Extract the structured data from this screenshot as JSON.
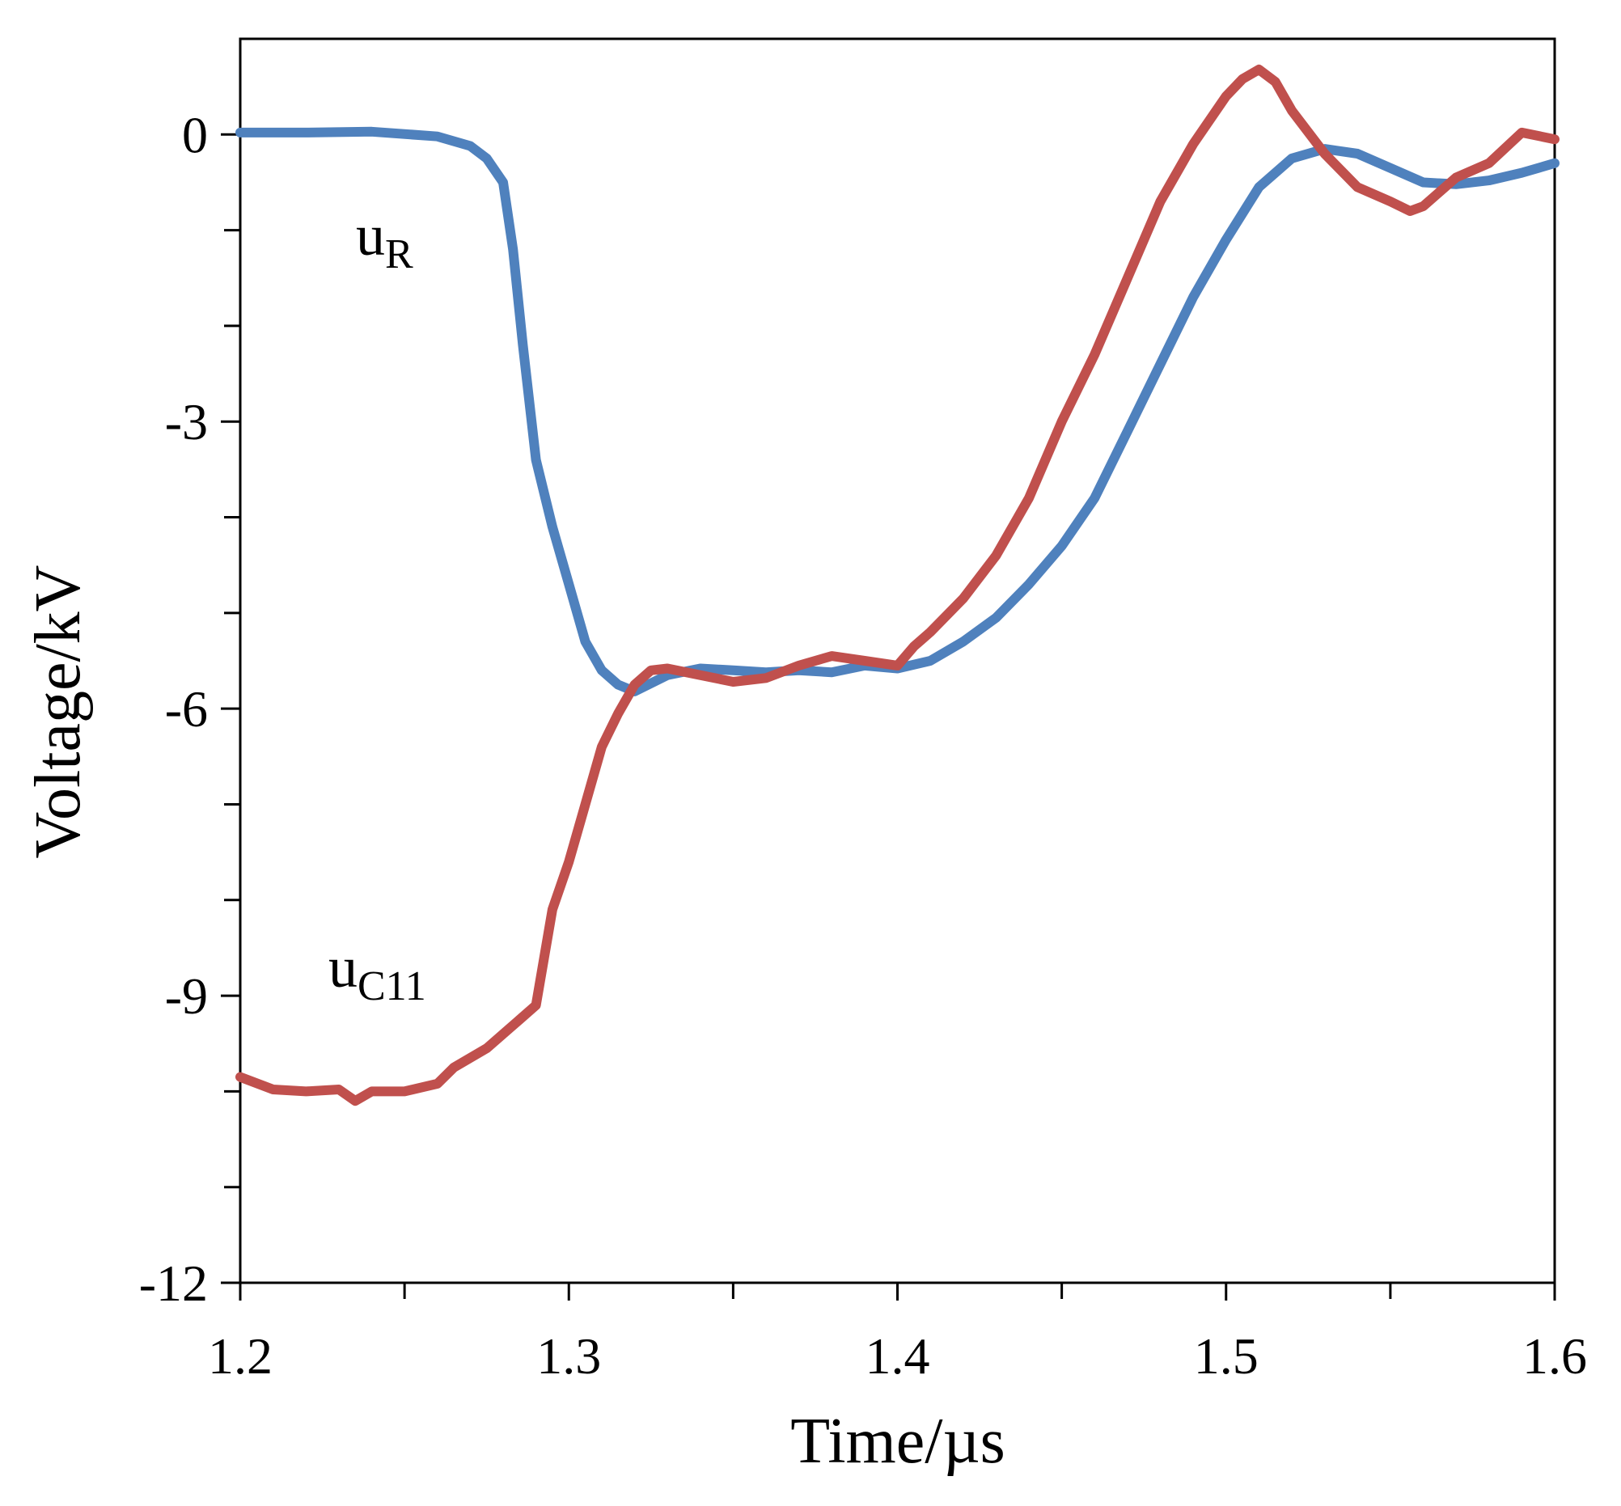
{
  "chart_data": {
    "type": "line",
    "title": "",
    "xlabel": "Time/µs",
    "ylabel": "Voltage/kV",
    "xlim": [
      1.2,
      1.6
    ],
    "ylim": [
      -12,
      1.0
    ],
    "x_ticks": [
      1.2,
      1.3,
      1.4,
      1.5,
      1.6
    ],
    "x_tick_labels": [
      "1.2",
      "1.3",
      "1.4",
      "1.5",
      "1.6"
    ],
    "x_minor_ticks": [
      1.25,
      1.35,
      1.45,
      1.55
    ],
    "y_ticks": [
      0,
      -3,
      -6,
      -9,
      -12
    ],
    "y_tick_labels": [
      "0",
      "-3",
      "-6",
      "-9",
      "-12"
    ],
    "y_minor_ticks": [
      -1,
      -2,
      -4,
      -5,
      -7,
      -8,
      -10,
      -11
    ],
    "grid": false,
    "series": [
      {
        "name": "uR",
        "label_main": "u",
        "label_sub": "R",
        "color": "#4F81BD",
        "points": [
          [
            1.2,
            0.02
          ],
          [
            1.22,
            0.02
          ],
          [
            1.24,
            0.03
          ],
          [
            1.26,
            -0.02
          ],
          [
            1.27,
            -0.12
          ],
          [
            1.275,
            -0.25
          ],
          [
            1.28,
            -0.5
          ],
          [
            1.283,
            -1.2
          ],
          [
            1.286,
            -2.2
          ],
          [
            1.29,
            -3.4
          ],
          [
            1.295,
            -4.1
          ],
          [
            1.3,
            -4.7
          ],
          [
            1.305,
            -5.3
          ],
          [
            1.31,
            -5.6
          ],
          [
            1.315,
            -5.75
          ],
          [
            1.32,
            -5.82
          ],
          [
            1.33,
            -5.65
          ],
          [
            1.34,
            -5.58
          ],
          [
            1.35,
            -5.6
          ],
          [
            1.36,
            -5.62
          ],
          [
            1.37,
            -5.6
          ],
          [
            1.38,
            -5.62
          ],
          [
            1.39,
            -5.55
          ],
          [
            1.4,
            -5.58
          ],
          [
            1.41,
            -5.5
          ],
          [
            1.42,
            -5.3
          ],
          [
            1.43,
            -5.05
          ],
          [
            1.44,
            -4.7
          ],
          [
            1.45,
            -4.3
          ],
          [
            1.46,
            -3.8
          ],
          [
            1.47,
            -3.1
          ],
          [
            1.48,
            -2.4
          ],
          [
            1.49,
            -1.7
          ],
          [
            1.5,
            -1.1
          ],
          [
            1.51,
            -0.55
          ],
          [
            1.52,
            -0.25
          ],
          [
            1.53,
            -0.15
          ],
          [
            1.54,
            -0.2
          ],
          [
            1.55,
            -0.35
          ],
          [
            1.56,
            -0.5
          ],
          [
            1.57,
            -0.52
          ],
          [
            1.58,
            -0.48
          ],
          [
            1.59,
            -0.4
          ],
          [
            1.6,
            -0.3
          ]
        ]
      },
      {
        "name": "uC11",
        "label_main": "u",
        "label_sub": "C11",
        "color": "#C0504D",
        "points": [
          [
            1.2,
            -9.85
          ],
          [
            1.21,
            -9.98
          ],
          [
            1.22,
            -10.0
          ],
          [
            1.23,
            -9.98
          ],
          [
            1.235,
            -10.1
          ],
          [
            1.24,
            -10.0
          ],
          [
            1.25,
            -10.0
          ],
          [
            1.26,
            -9.92
          ],
          [
            1.265,
            -9.75
          ],
          [
            1.275,
            -9.55
          ],
          [
            1.285,
            -9.25
          ],
          [
            1.29,
            -9.1
          ],
          [
            1.295,
            -8.1
          ],
          [
            1.3,
            -7.6
          ],
          [
            1.305,
            -7.0
          ],
          [
            1.31,
            -6.4
          ],
          [
            1.315,
            -6.05
          ],
          [
            1.32,
            -5.75
          ],
          [
            1.325,
            -5.6
          ],
          [
            1.33,
            -5.58
          ],
          [
            1.34,
            -5.65
          ],
          [
            1.35,
            -5.72
          ],
          [
            1.36,
            -5.68
          ],
          [
            1.37,
            -5.55
          ],
          [
            1.38,
            -5.45
          ],
          [
            1.39,
            -5.5
          ],
          [
            1.4,
            -5.55
          ],
          [
            1.405,
            -5.35
          ],
          [
            1.41,
            -5.2
          ],
          [
            1.42,
            -4.85
          ],
          [
            1.43,
            -4.4
          ],
          [
            1.44,
            -3.8
          ],
          [
            1.45,
            -3.0
          ],
          [
            1.46,
            -2.3
          ],
          [
            1.47,
            -1.5
          ],
          [
            1.48,
            -0.7
          ],
          [
            1.49,
            -0.1
          ],
          [
            1.5,
            0.4
          ],
          [
            1.505,
            0.58
          ],
          [
            1.51,
            0.68
          ],
          [
            1.515,
            0.55
          ],
          [
            1.52,
            0.25
          ],
          [
            1.53,
            -0.2
          ],
          [
            1.54,
            -0.55
          ],
          [
            1.55,
            -0.7
          ],
          [
            1.556,
            -0.8
          ],
          [
            1.56,
            -0.75
          ],
          [
            1.57,
            -0.45
          ],
          [
            1.58,
            -0.3
          ],
          [
            1.59,
            0.02
          ],
          [
            1.6,
            -0.05
          ]
        ]
      }
    ]
  }
}
